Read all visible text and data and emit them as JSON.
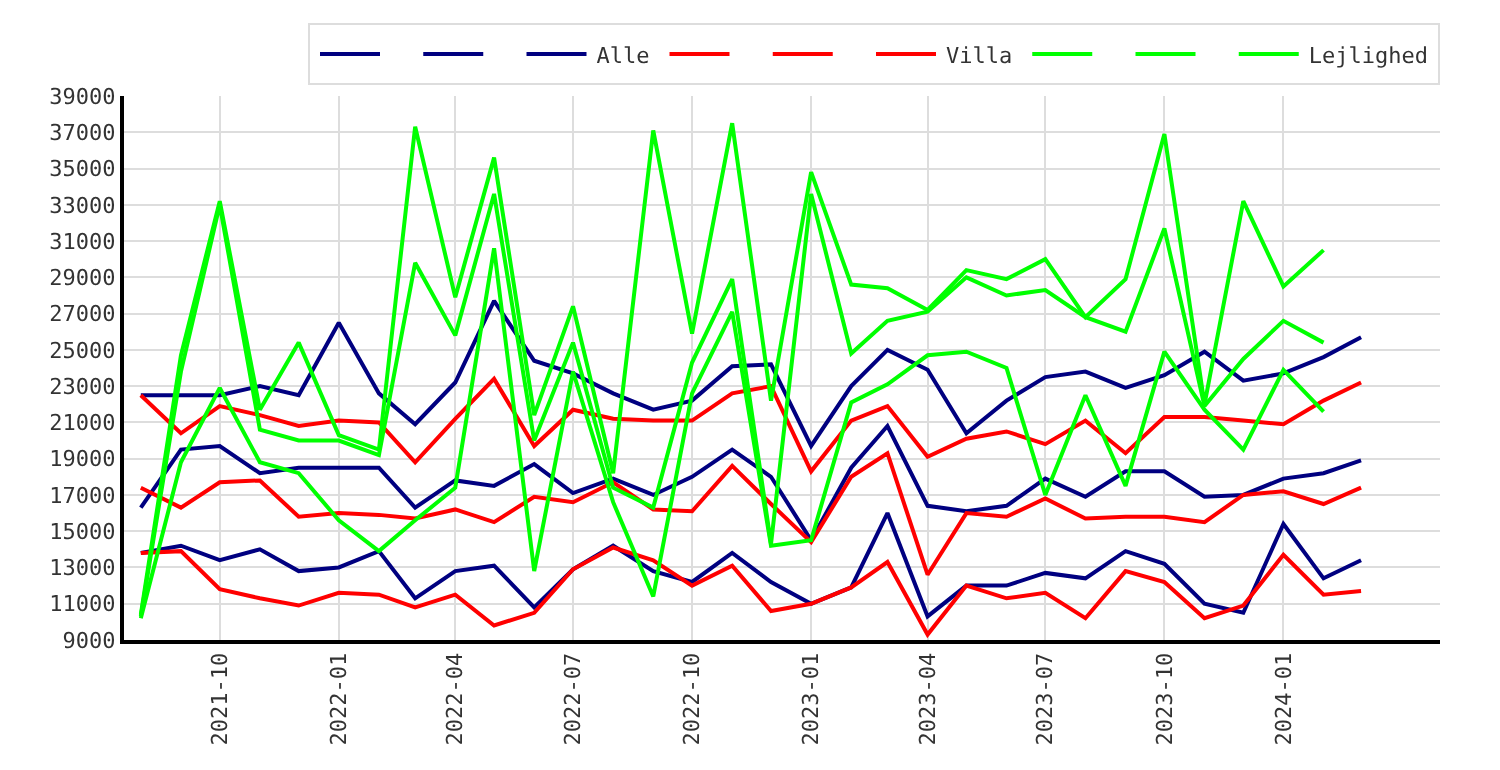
{
  "chart_data": {
    "type": "line",
    "x": [
      "2021-08",
      "2021-09",
      "2021-10",
      "2021-11",
      "2021-12",
      "2022-01",
      "2022-02",
      "2022-03",
      "2022-04",
      "2022-05",
      "2022-06",
      "2022-07",
      "2022-08",
      "2022-09",
      "2022-10",
      "2022-11",
      "2022-12",
      "2023-01",
      "2023-02",
      "2023-03",
      "2023-04",
      "2023-05",
      "2023-06",
      "2023-07",
      "2023-08",
      "2023-09",
      "2023-10",
      "2023-11",
      "2023-12",
      "2024-01",
      "2024-02",
      "2024-03"
    ],
    "xlim": [
      "2021-07-19",
      "2024-05-01"
    ],
    "xticks": [
      "2021-10",
      "2022-01",
      "2022-04",
      "2022-07",
      "2022-10",
      "2023-01",
      "2023-04",
      "2023-07",
      "2023-10",
      "2024-01"
    ],
    "ylim": [
      9000,
      39000
    ],
    "yticks": [
      9000,
      11000,
      13000,
      15000,
      17000,
      19000,
      21000,
      23000,
      25000,
      27000,
      29000,
      31000,
      33000,
      35000,
      37000,
      39000
    ],
    "grid": true,
    "legend": "top right",
    "line_style": "solid",
    "marker": "none",
    "series": [
      {
        "color": "#000080",
        "values": [
          22500,
          22500,
          22500,
          23000,
          22500,
          26500,
          22600,
          20900,
          23200,
          27700,
          24400,
          23700,
          22600,
          21700,
          22200,
          24100,
          24200,
          19700,
          23000,
          25000,
          23900,
          20400,
          22200,
          23500,
          23800,
          22900,
          23600,
          24900,
          23300,
          23700,
          24600,
          25700
        ]
      },
      {
        "color": "#000080",
        "values": [
          16300,
          19500,
          19700,
          18200,
          18500,
          18500,
          18500,
          16300,
          17800,
          17500,
          18700,
          17100,
          17900,
          17000,
          18000,
          19500,
          18000,
          14500,
          18500,
          20800,
          16400,
          16100,
          16400,
          17900,
          16900,
          18300,
          18300,
          16900,
          17000,
          17900,
          18200,
          18900
        ]
      },
      {
        "name": "Alle",
        "color": "#000080",
        "values": [
          13800,
          14200,
          13400,
          14000,
          12800,
          13000,
          13900,
          11300,
          12800,
          13100,
          10800,
          12900,
          14200,
          12800,
          12200,
          13800,
          12200,
          11000,
          11900,
          16000,
          10300,
          12000,
          12000,
          12700,
          12400,
          13900,
          13200,
          11000,
          10500,
          15400,
          12400,
          13400
        ]
      },
      {
        "color": "#ff0000",
        "values": [
          22500,
          20400,
          21900,
          21400,
          20800,
          21100,
          21000,
          18800,
          21200,
          23400,
          19700,
          21700,
          21200,
          21100,
          21100,
          22600,
          23000,
          18300,
          21100,
          21900,
          19100,
          20100,
          20500,
          19800,
          21100,
          19300,
          21300,
          21300,
          21100,
          20900,
          22200,
          23200
        ]
      },
      {
        "color": "#ff0000",
        "values": [
          17400,
          16300,
          17700,
          17800,
          15800,
          16000,
          15900,
          15700,
          16200,
          15500,
          16900,
          16600,
          17700,
          16200,
          16100,
          18600,
          16500,
          14400,
          18000,
          19300,
          12600,
          16000,
          15800,
          16800,
          15700,
          15800,
          15800,
          15500,
          17000,
          17200,
          16500,
          17400
        ]
      },
      {
        "name": "Villa",
        "color": "#ff0000",
        "values": [
          13800,
          13900,
          11800,
          11300,
          10900,
          11600,
          11500,
          10800,
          11500,
          9800,
          10500,
          12900,
          14100,
          13400,
          12000,
          13100,
          10600,
          11000,
          11900,
          13300,
          9300,
          12000,
          11300,
          11600,
          10200,
          12800,
          12200,
          10200,
          10900,
          13700,
          11500,
          11700
        ]
      },
      {
        "color": "#00ff00",
        "x": [
          "2021-08",
          "2021-09",
          "2021-10",
          "2021-11",
          "2021-12",
          "2022-01",
          "2022-02",
          "2022-03",
          "2022-04",
          "2022-05",
          "2022-06",
          "2022-07",
          "2022-08",
          "2022-09",
          "2022-10",
          "2022-11",
          "2022-12",
          "2023-01",
          "2023-02",
          "2023-03",
          "2023-04",
          "2023-05",
          "2023-06",
          "2023-07",
          "2023-08",
          "2023-09",
          "2023-10",
          "2023-11",
          "2023-12",
          "2024-01",
          "2024-02"
        ],
        "values": [
          10400,
          24700,
          33200,
          21700,
          25400,
          20300,
          19500,
          37300,
          27900,
          35600,
          21400,
          27400,
          18200,
          37100,
          25900,
          37500,
          22200,
          34800,
          28600,
          28400,
          27200,
          29400,
          28900,
          30000,
          26800,
          28900,
          36900,
          22000,
          33200,
          28500,
          30500
        ]
      },
      {
        "color": "#00ff00",
        "x": [
          "2021-08",
          "2021-09",
          "2021-10",
          "2021-11",
          "2021-12",
          "2022-01",
          "2022-02",
          "2022-03",
          "2022-04",
          "2022-05",
          "2022-06",
          "2022-07",
          "2022-08",
          "2022-09",
          "2022-10",
          "2022-11",
          "2022-12",
          "2023-01",
          "2023-02",
          "2023-03",
          "2023-04",
          "2023-05",
          "2023-06",
          "2023-07",
          "2023-08",
          "2023-09",
          "2023-10",
          "2023-11",
          "2023-12",
          "2024-01",
          "2024-02"
        ],
        "values": [
          10300,
          23800,
          33000,
          20600,
          20000,
          20000,
          19200,
          29800,
          25800,
          33600,
          20000,
          25400,
          17400,
          16300,
          24300,
          28900,
          14300,
          33600,
          24800,
          26600,
          27100,
          29000,
          28000,
          28300,
          26800,
          26000,
          31700,
          21900,
          24500,
          26600,
          25400
        ]
      },
      {
        "name": "Lejlighed",
        "color": "#00ff00",
        "x": [
          "2021-08",
          "2021-09",
          "2021-10",
          "2021-11",
          "2021-12",
          "2022-01",
          "2022-02",
          "2022-03",
          "2022-04",
          "2022-05",
          "2022-06",
          "2022-07",
          "2022-08",
          "2022-09",
          "2022-10",
          "2022-11",
          "2022-12",
          "2023-01",
          "2023-02",
          "2023-03",
          "2023-04",
          "2023-05",
          "2023-06",
          "2023-07",
          "2023-08",
          "2023-09",
          "2023-10",
          "2023-11",
          "2023-12",
          "2024-01",
          "2024-02"
        ],
        "values": [
          10200,
          18800,
          22900,
          18800,
          18200,
          15600,
          13900,
          15600,
          17400,
          30600,
          12800,
          23800,
          16600,
          11400,
          22600,
          27100,
          14200,
          14500,
          22100,
          23100,
          24700,
          24900,
          24000,
          17000,
          22500,
          17500,
          24900,
          21700,
          19500,
          23900,
          21600
        ]
      }
    ]
  }
}
